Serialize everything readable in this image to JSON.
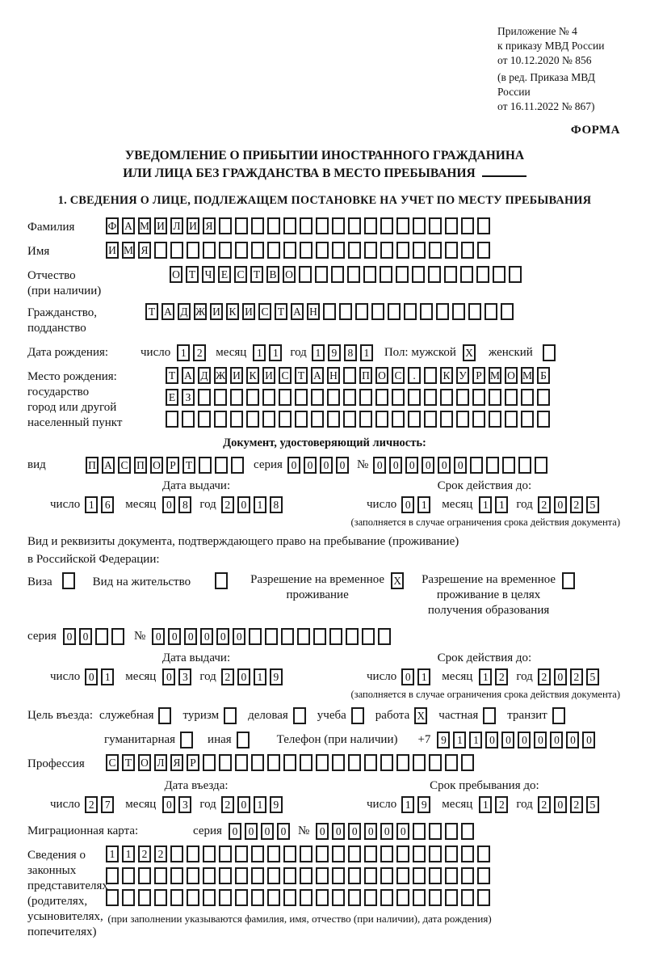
{
  "page": {
    "appendix": [
      "Приложение № 4",
      "к приказу МВД России",
      "от 10.12.2020 № 856"
    ],
    "amendment": [
      "(в ред. Приказа МВД России",
      "от 16.11.2022 № 867)"
    ],
    "forma": "ФОРМА",
    "title1": "УВЕДОМЛЕНИЕ О ПРИБЫТИИ ИНОСТРАННОГО ГРАЖДАНИНА",
    "title2": "ИЛИ ЛИЦА БЕЗ ГРАЖДАНСТВА В МЕСТО ПРЕБЫВАНИЯ",
    "section1_title": "1. СВЕДЕНИЯ О ЛИЦЕ, ПОДЛЕЖАЩЕМ ПОСТАНОВКЕ НА УЧЕТ ПО МЕСТУ ПРЕБЫВАНИЯ"
  },
  "labels": {
    "surname": "Фамилия",
    "given_name": "Имя",
    "patronymic_1": "Отчество",
    "patronymic_2": "(при наличии)",
    "citizenship_1": "Гражданство,",
    "citizenship_2": "подданство",
    "birth_date": "Дата рождения:",
    "day": "число",
    "month": "месяц",
    "year": "год",
    "sex_male": "Пол: мужской",
    "sex_female": "женский",
    "birth_place_1": "Место рождения:",
    "birth_place_2": "государство",
    "birth_place_3": "город или другой",
    "birth_place_4": "населенный пункт",
    "identity_doc_header": "Документ, удостоверяющий личность:",
    "doc_type": "вид",
    "series": "серия",
    "number": "№",
    "issue_date_header": "Дата выдачи:",
    "validity_header": "Срок действия до:",
    "validity_note": "(заполняется в случае ограничения срока действия документа)",
    "residence_doc_1": "Вид и реквизиты документа, подтверждающего право на пребывание (проживание)",
    "residence_doc_2": "в Российской Федерации:",
    "visa": "Виза",
    "residence_permit": "Вид на жительство",
    "temp_permit_1": "Разрешение на временное",
    "temp_permit_2": "проживание",
    "edu_permit_1": "Разрешение на временное",
    "edu_permit_2": "проживание в целях",
    "edu_permit_3": "получения образования",
    "purpose": "Цель въезда:",
    "opt_official": "служебная",
    "opt_tourism": "туризм",
    "opt_business": "деловая",
    "opt_study": "учеба",
    "opt_work": "работа",
    "opt_private": "частная",
    "opt_transit": "транзит",
    "opt_humanitarian": "гуманитарная",
    "opt_other": "иная",
    "phone_label": "Телефон (при наличии)",
    "phone_prefix": "+7",
    "profession": "Профессия",
    "entry_date_header": "Дата въезда:",
    "stay_header": "Срок пребывания до:",
    "migration_card": "Миграционная карта:",
    "reps_1": "Сведения о",
    "reps_2": "законных",
    "reps_3": "представителях",
    "reps_4": "(родителях,",
    "reps_5": "усыновителях,",
    "reps_6": "попечителях)",
    "reps_note": "(при заполнении указываются фамилия, имя, отчество (при наличии), дата рождения)"
  },
  "boxes": {
    "surname": {
      "chars": "ФАМИЛИЯ",
      "count": 24
    },
    "given_name": {
      "chars": "ИМЯ",
      "count": 24
    },
    "patronymic": {
      "chars": "ОТЧЕСТВО",
      "count": 22
    },
    "citizenship": {
      "chars": "ТАДЖИКИСТАН",
      "count": 23
    },
    "birth_day": {
      "chars": "12",
      "count": 2
    },
    "birth_month": {
      "chars": "11",
      "count": 2
    },
    "birth_year": {
      "chars": "1981",
      "count": 4
    },
    "sex_male": {
      "chars": "X",
      "count": 1
    },
    "sex_female": {
      "chars": "",
      "count": 1
    },
    "birth_place_row1": {
      "chars": "ТАДЖИКИСТАН ПОС. КУРМОМБ",
      "count": 24
    },
    "birth_place_row2": {
      "chars": "ЕЗ",
      "count": 24
    },
    "birth_place_row3": {
      "chars": "",
      "count": 24
    },
    "doc_type": {
      "chars": "ПАСПОРТ",
      "count": 10
    },
    "doc_series": {
      "chars": "0000",
      "count": 4
    },
    "doc_number": {
      "chars": "000000",
      "count": 11
    },
    "doc_issue_day": {
      "chars": "16",
      "count": 2
    },
    "doc_issue_month": {
      "chars": "08",
      "count": 2
    },
    "doc_issue_year": {
      "chars": "2018",
      "count": 4
    },
    "doc_valid_day": {
      "chars": "01",
      "count": 2
    },
    "doc_valid_month": {
      "chars": "11",
      "count": 2
    },
    "doc_valid_year": {
      "chars": "2025",
      "count": 4
    },
    "visa_cb": {
      "chars": "",
      "count": 1
    },
    "residence_permit_cb": {
      "chars": "",
      "count": 1
    },
    "temp_permit_cb": {
      "chars": "X",
      "count": 1
    },
    "edu_permit_cb": {
      "chars": "",
      "count": 1
    },
    "permit_series": {
      "chars": "00",
      "count": 4
    },
    "permit_number": {
      "chars": "000000",
      "count": 15
    },
    "permit_issue_day": {
      "chars": "01",
      "count": 2
    },
    "permit_issue_month": {
      "chars": "03",
      "count": 2
    },
    "permit_issue_year": {
      "chars": "2019",
      "count": 4
    },
    "permit_valid_day": {
      "chars": "01",
      "count": 2
    },
    "permit_valid_month": {
      "chars": "12",
      "count": 2
    },
    "permit_valid_year": {
      "chars": "2025",
      "count": 4
    },
    "purpose_official": {
      "chars": "",
      "count": 1
    },
    "purpose_tourism": {
      "chars": "",
      "count": 1
    },
    "purpose_business": {
      "chars": "",
      "count": 1
    },
    "purpose_study": {
      "chars": "",
      "count": 1
    },
    "purpose_work": {
      "chars": "X",
      "count": 1
    },
    "purpose_private": {
      "chars": "",
      "count": 1
    },
    "purpose_transit": {
      "chars": "",
      "count": 1
    },
    "purpose_humanitarian": {
      "chars": "",
      "count": 1
    },
    "purpose_other": {
      "chars": "",
      "count": 1
    },
    "phone": {
      "chars": "9110000000",
      "count": 10
    },
    "profession": {
      "chars": "СТОЛЯР",
      "count": 23
    },
    "entry_day": {
      "chars": "27",
      "count": 2
    },
    "entry_month": {
      "chars": "03",
      "count": 2
    },
    "entry_year": {
      "chars": "2019",
      "count": 4
    },
    "stay_day": {
      "chars": "19",
      "count": 2
    },
    "stay_month": {
      "chars": "12",
      "count": 2
    },
    "stay_year": {
      "chars": "2025",
      "count": 4
    },
    "mig_series": {
      "chars": "0000",
      "count": 4
    },
    "mig_number": {
      "chars": "000000",
      "count": 10
    },
    "reps_row1": {
      "chars": "1122",
      "count": 24
    },
    "reps_row2": {
      "chars": "",
      "count": 24
    },
    "reps_row3": {
      "chars": "",
      "count": 24
    }
  }
}
